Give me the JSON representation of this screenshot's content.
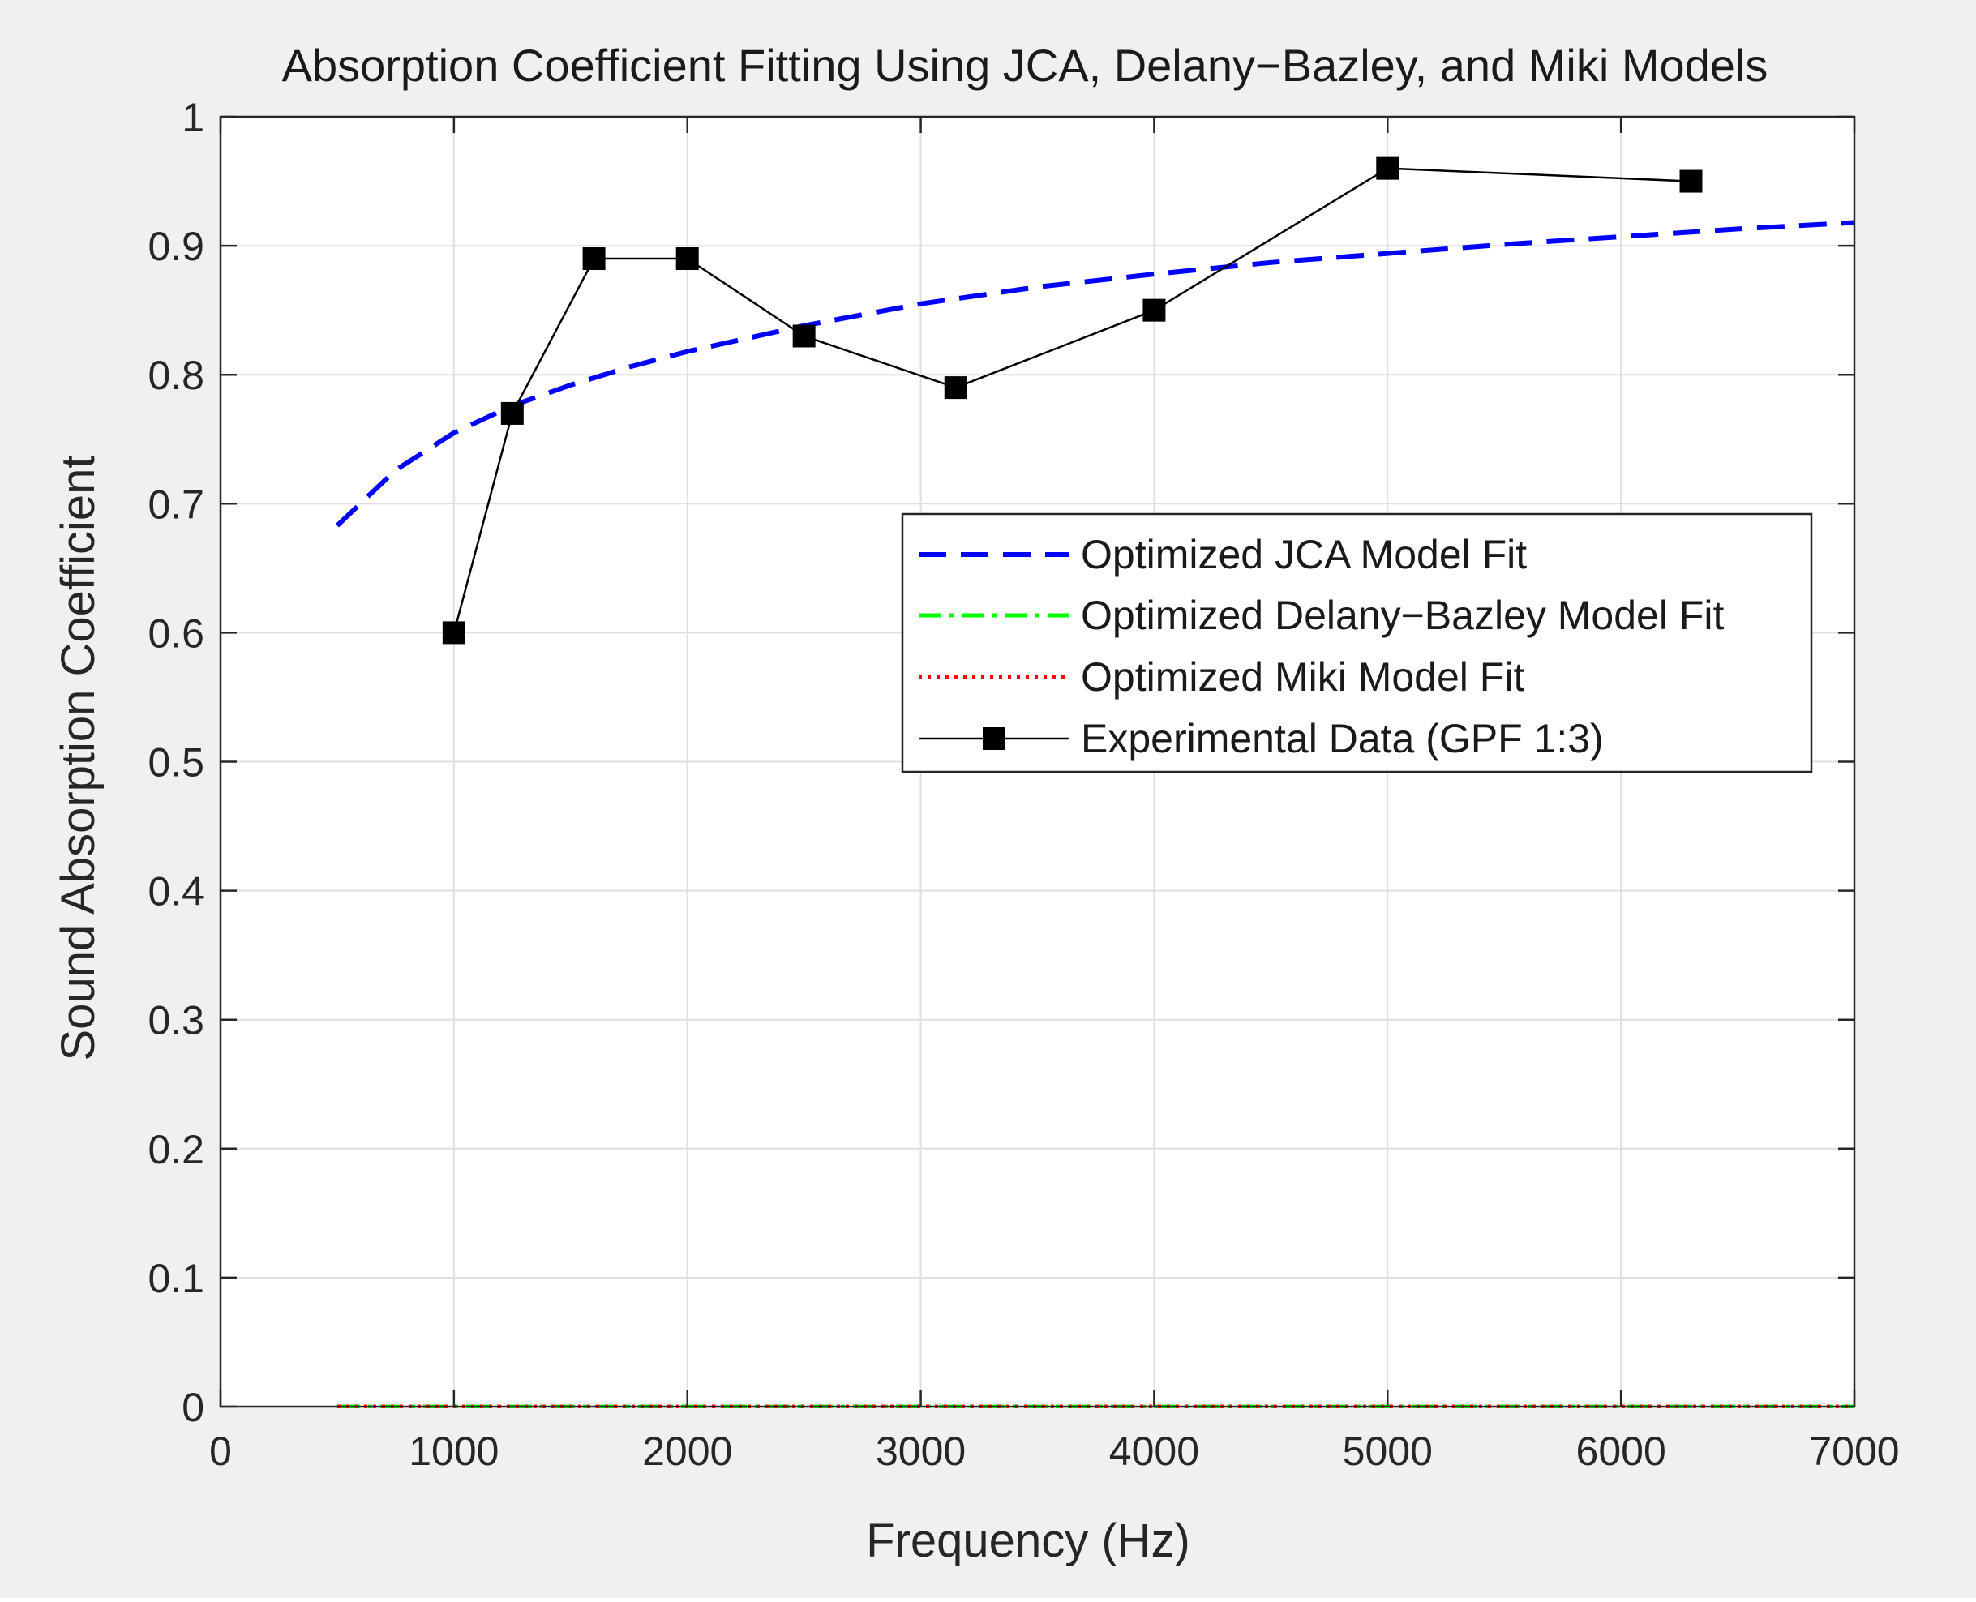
{
  "chart_data": {
    "type": "line",
    "title": "Absorption Coefficient Fitting Using JCA, Delany−Bazley, and Miki Models",
    "xlabel": "Frequency (Hz)",
    "ylabel": "Sound Absorption Coefficient",
    "xlim": [
      0,
      7000
    ],
    "ylim": [
      0,
      1
    ],
    "xticks": [
      0,
      1000,
      2000,
      3000,
      4000,
      5000,
      6000,
      7000
    ],
    "xtick_labels": [
      "0",
      "1000",
      "2000",
      "3000",
      "4000",
      "5000",
      "6000",
      "7000"
    ],
    "yticks": [
      0,
      0.1,
      0.2,
      0.3,
      0.4,
      0.5,
      0.6,
      0.7,
      0.8,
      0.9,
      1
    ],
    "ytick_labels": [
      "0",
      "0.1",
      "0.2",
      "0.3",
      "0.4",
      "0.5",
      "0.6",
      "0.7",
      "0.8",
      "0.9",
      "1"
    ],
    "grid": true,
    "legend_position": "center-right",
    "series": [
      {
        "name": "Optimized JCA Model Fit",
        "style": "dashed",
        "color": "#0000ff",
        "x": [
          500,
          750,
          1000,
          1250,
          1500,
          1750,
          2000,
          2500,
          3000,
          3500,
          4000,
          4500,
          5000,
          5500,
          6000,
          6500,
          7000
        ],
        "y": [
          0.683,
          0.726,
          0.755,
          0.776,
          0.792,
          0.806,
          0.818,
          0.838,
          0.855,
          0.868,
          0.878,
          0.887,
          0.894,
          0.901,
          0.907,
          0.913,
          0.918
        ]
      },
      {
        "name": "Optimized Delany−Bazley Model Fit",
        "style": "dashdot",
        "color": "#00ff00",
        "x": [
          500,
          7000
        ],
        "y": [
          0,
          0
        ]
      },
      {
        "name": "Optimized Miki Model Fit",
        "style": "dotted",
        "color": "#ff0000",
        "x": [
          500,
          7000
        ],
        "y": [
          0,
          0
        ]
      },
      {
        "name": "Experimental Data (GPF 1:3)",
        "style": "solid-square-markers",
        "color": "#000000",
        "x": [
          1000,
          1250,
          1600,
          2000,
          2500,
          3150,
          4000,
          5000,
          6300
        ],
        "y": [
          0.6,
          0.77,
          0.89,
          0.89,
          0.83,
          0.79,
          0.85,
          0.96,
          0.95
        ]
      }
    ]
  }
}
